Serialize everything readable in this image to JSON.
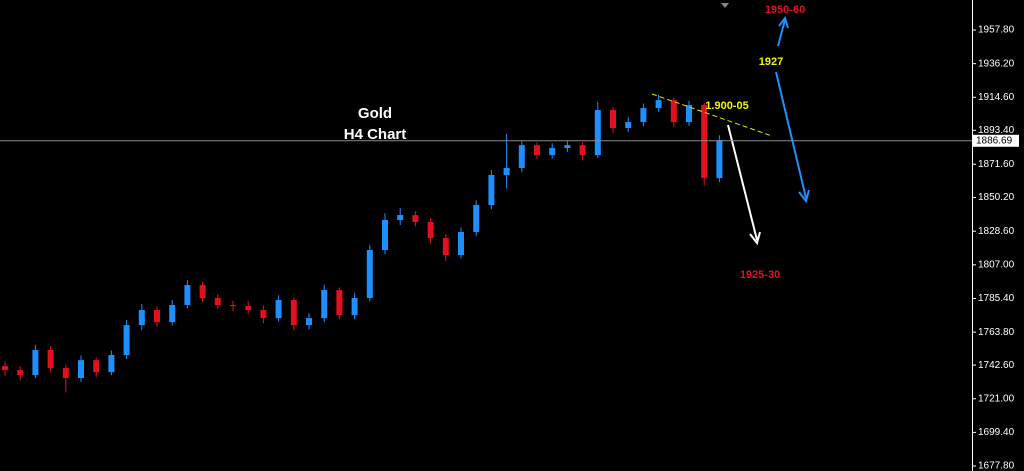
{
  "chart_data": {
    "type": "candlestick",
    "title": "Gold",
    "subtitle": "H4 Chart",
    "annotations": [
      "1.900-05",
      "1927",
      "1950-60",
      "1925-30"
    ],
    "up_color": "#1e8fff",
    "down_color": "#e3101f",
    "last_price": 1886.69,
    "ylim": [
      1674.6,
      1977.1
    ],
    "yticks": [
      {
        "value": 1957.8,
        "label": "1957.80"
      },
      {
        "value": 1936.2,
        "label": "1936.20"
      },
      {
        "value": 1914.6,
        "label": "1914.60"
      },
      {
        "value": 1893.4,
        "label": "1893.40"
      },
      {
        "value": 1871.6,
        "label": "1871.60"
      },
      {
        "value": 1850.2,
        "label": "1850.20"
      },
      {
        "value": 1828.6,
        "label": "1828.60"
      },
      {
        "value": 1807.0,
        "label": "1807.00"
      },
      {
        "value": 1785.4,
        "label": "1785.40"
      },
      {
        "value": 1763.8,
        "label": "1763.80"
      },
      {
        "value": 1742.6,
        "label": "1742.60"
      },
      {
        "value": 1721.0,
        "label": "1721.00"
      },
      {
        "value": 1699.4,
        "label": "1699.40"
      },
      {
        "value": 1677.8,
        "label": "1677.80"
      }
    ],
    "open": [
      1742.0,
      1739.4,
      1736.2,
      1752.3,
      1740.7,
      1734.3,
      1745.8,
      1738.1,
      1749.1,
      1768.3,
      1778.0,
      1770.2,
      1781.2,
      1794.0,
      1785.7,
      1781.2,
      1780.5,
      1778.0,
      1772.8,
      1784.4,
      1768.3,
      1772.8,
      1790.8,
      1774.7,
      1785.7,
      1816.5,
      1835.8,
      1839.0,
      1834.5,
      1824.2,
      1813.3,
      1828.1,
      1845.4,
      1864.7,
      1869.2,
      1883.9,
      1877.5,
      1882.0,
      1883.9,
      1877.5,
      1906.4,
      1894.9,
      1898.7,
      1907.7,
      1912.8,
      1898.7,
      1909.6,
      1862.7
    ],
    "high": [
      1745.1,
      1742.0,
      1755.6,
      1754.8,
      1743.0,
      1748.9,
      1747.5,
      1752.0,
      1771.6,
      1781.9,
      1780.4,
      1784.5,
      1797.3,
      1796.1,
      1788.2,
      1784.0,
      1783.6,
      1780.9,
      1787.5,
      1786.0,
      1775.9,
      1794.2,
      1792.5,
      1789.0,
      1819.8,
      1840.2,
      1843.6,
      1841.5,
      1837.0,
      1826.8,
      1831.0,
      1848.3,
      1867.9,
      1891.2,
      1887.0,
      1885.6,
      1885.1,
      1886.8,
      1885.9,
      1911.8,
      1908.5,
      1901.9,
      1910.6,
      1916.5,
      1914.4,
      1912.3,
      1911.0,
      1890.2
    ],
    "low": [
      1735.8,
      1733.0,
      1734.1,
      1737.9,
      1725.0,
      1731.8,
      1735.0,
      1736.2,
      1746.5,
      1765.0,
      1767.3,
      1768.0,
      1779.1,
      1782.9,
      1778.4,
      1777.2,
      1775.3,
      1769.5,
      1770.6,
      1764.8,
      1765.5,
      1770.1,
      1771.9,
      1772.0,
      1783.4,
      1813.8,
      1832.6,
      1831.7,
      1821.0,
      1809.5,
      1811.0,
      1825.4,
      1842.8,
      1856.0,
      1866.5,
      1874.8,
      1875.2,
      1879.4,
      1874.1,
      1875.6,
      1891.8,
      1892.3,
      1896.0,
      1905.1,
      1895.4,
      1896.2,
      1858.0,
      1860.1
    ],
    "close": [
      1739.4,
      1736.2,
      1752.3,
      1740.7,
      1734.3,
      1745.8,
      1738.1,
      1749.1,
      1768.3,
      1778.0,
      1770.2,
      1781.2,
      1794.0,
      1785.7,
      1781.2,
      1780.5,
      1778.0,
      1772.8,
      1784.4,
      1768.3,
      1772.8,
      1790.8,
      1774.7,
      1785.7,
      1816.5,
      1835.8,
      1839.0,
      1834.5,
      1824.2,
      1813.3,
      1828.1,
      1845.4,
      1864.7,
      1869.2,
      1883.9,
      1877.5,
      1882.0,
      1883.9,
      1877.5,
      1906.4,
      1894.9,
      1898.7,
      1907.7,
      1912.8,
      1898.7,
      1909.6,
      1862.7,
      1887.1
    ]
  }
}
